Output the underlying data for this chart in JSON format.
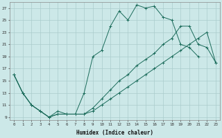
{
  "xlabel": "Humidex (Indice chaleur)",
  "background_color": "#cce8e8",
  "grid_color": "#aacccc",
  "line_color": "#1a6b5a",
  "xlim": [
    -0.5,
    23.5
  ],
  "ylim": [
    8.5,
    28.0
  ],
  "yticks": [
    9,
    11,
    13,
    15,
    17,
    19,
    21,
    23,
    25,
    27
  ],
  "xticks": [
    0,
    1,
    2,
    3,
    4,
    5,
    6,
    7,
    8,
    9,
    10,
    11,
    12,
    13,
    14,
    15,
    16,
    17,
    18,
    19,
    20,
    21,
    22,
    23
  ],
  "line1_y": [
    16,
    13,
    11,
    10,
    9,
    10,
    9.5,
    9.5,
    13,
    19,
    20,
    24,
    26.5,
    25,
    27.5,
    27,
    27.3,
    25.5,
    25,
    21,
    20.5,
    19,
    null,
    null
  ],
  "line2_y": [
    16,
    13,
    11,
    10,
    9,
    9.5,
    9.5,
    9.5,
    9.5,
    10,
    11,
    12,
    13,
    14,
    15,
    16,
    17,
    18,
    19,
    20,
    21,
    22,
    23,
    18
  ],
  "line3_y": [
    16,
    13,
    11,
    10,
    9,
    9.5,
    9.5,
    9.5,
    9.5,
    10.5,
    12,
    13.5,
    15,
    16,
    17.5,
    18.5,
    19.5,
    21,
    22,
    24,
    24,
    21,
    20.5,
    18
  ]
}
